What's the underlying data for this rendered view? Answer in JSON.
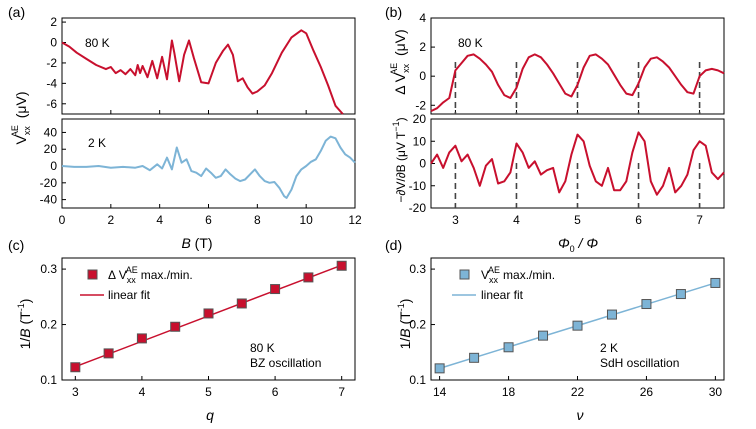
{
  "panel_labels": {
    "a": "(a)",
    "b": "(b)",
    "c": "(c)",
    "d": "(d)"
  },
  "colors": {
    "red": "#c8102e",
    "blue": "#7db4d6",
    "marker_edge": "#555555",
    "dash": "#444444"
  },
  "chart_data": [
    {
      "id": "a_top",
      "type": "line",
      "annotation": "80 K",
      "xlim": [
        0,
        12
      ],
      "ylim": [
        -7,
        2.4
      ],
      "yticks": [
        2,
        0,
        -2,
        -4,
        -6
      ],
      "series": [
        {
          "color": "#c8102e",
          "x": [
            0,
            0.3,
            0.6,
            1,
            1.4,
            1.8,
            2,
            2.2,
            2.4,
            2.6,
            2.8,
            3,
            3.1,
            3.2,
            3.3,
            3.5,
            3.7,
            3.9,
            4.1,
            4.3,
            4.5,
            4.6,
            4.8,
            5,
            5.2,
            5.4,
            5.7,
            6,
            6.3,
            6.6,
            6.8,
            7,
            7.2,
            7.4,
            7.6,
            7.8,
            8,
            8.3,
            8.6,
            9,
            9.4,
            9.8,
            10,
            10.3,
            10.6,
            10.9,
            11.2,
            11.5
          ],
          "y": [
            0,
            -0.4,
            -1,
            -1.6,
            -2.2,
            -2.6,
            -2.4,
            -3,
            -2.7,
            -3.1,
            -2.6,
            -3.2,
            -2.2,
            -3,
            -2.3,
            -3.4,
            -1.8,
            -3.5,
            -1.4,
            -3.6,
            0.2,
            -1,
            -3.8,
            -1.2,
            0.2,
            -1.5,
            -3.9,
            -4,
            -2,
            -0.8,
            -0.2,
            -1.2,
            -3.8,
            -3.5,
            -4.4,
            -5,
            -4.8,
            -4.2,
            -3,
            -1,
            0.5,
            1.2,
            0.9,
            -0.8,
            -2.4,
            -4.2,
            -6.2,
            -7.2
          ]
        }
      ]
    },
    {
      "id": "a_bottom",
      "type": "line",
      "annotation": "2 K",
      "xlabel": "B (T)",
      "xlim": [
        0,
        12
      ],
      "ylim": [
        -50,
        56
      ],
      "xticks": [
        0,
        2,
        4,
        6,
        8,
        10,
        12
      ],
      "yticks": [
        40,
        20,
        0,
        -20,
        -40
      ],
      "series": [
        {
          "color": "#7db4d6",
          "x": [
            0,
            0.5,
            1,
            1.5,
            2,
            2.5,
            3,
            3.3,
            3.6,
            3.9,
            4.1,
            4.3,
            4.5,
            4.7,
            4.9,
            5.1,
            5.3,
            5.5,
            5.7,
            5.9,
            6.1,
            6.3,
            6.5,
            6.7,
            6.9,
            7.1,
            7.3,
            7.5,
            7.7,
            7.9,
            8.1,
            8.3,
            8.5,
            8.7,
            8.9,
            9.1,
            9.2,
            9.4,
            9.6,
            9.8,
            10,
            10.2,
            10.4,
            10.6,
            10.8,
            11,
            11.2,
            11.4,
            11.6,
            11.8,
            12
          ],
          "y": [
            0,
            -1,
            -1,
            0,
            -2,
            -1,
            -2,
            0,
            -5,
            2,
            -3,
            10,
            -4,
            22,
            4,
            8,
            -6,
            -8,
            -12,
            -3,
            -8,
            -14,
            -12,
            -4,
            -10,
            -15,
            -18,
            -16,
            -10,
            -4,
            -12,
            -18,
            -20,
            -19,
            -26,
            -36,
            -38,
            -28,
            -12,
            -4,
            0,
            5,
            8,
            18,
            30,
            35,
            33,
            22,
            14,
            10,
            4
          ]
        }
      ]
    },
    {
      "id": "b_top",
      "type": "line",
      "annotation": "80 K",
      "xlim": [
        2.6,
        7.4
      ],
      "ylim": [
        -2.6,
        4
      ],
      "yticks": [
        4,
        2,
        0,
        -2
      ],
      "dashed_x": [
        3,
        4,
        5,
        6,
        7
      ],
      "series": [
        {
          "color": "#c8102e",
          "x": [
            2.6,
            2.7,
            2.8,
            2.9,
            3.0,
            3.1,
            3.2,
            3.3,
            3.4,
            3.5,
            3.6,
            3.7,
            3.8,
            3.9,
            4.0,
            4.1,
            4.2,
            4.3,
            4.4,
            4.5,
            4.6,
            4.7,
            4.8,
            4.9,
            5.0,
            5.1,
            5.2,
            5.3,
            5.4,
            5.5,
            5.6,
            5.7,
            5.8,
            5.9,
            6.0,
            6.1,
            6.2,
            6.3,
            6.4,
            6.5,
            6.6,
            6.7,
            6.8,
            6.9,
            7.0,
            7.1,
            7.2,
            7.3,
            7.4
          ],
          "y": [
            -2.4,
            -2.2,
            -1.8,
            -1.5,
            0.4,
            0.9,
            1.4,
            1.5,
            1.2,
            0.8,
            0.3,
            -0.6,
            -1.3,
            -1.5,
            -0.8,
            0.5,
            1.3,
            1.5,
            1.3,
            0.8,
            0.2,
            -0.5,
            -1.2,
            -1.4,
            -0.6,
            0.6,
            1.4,
            1.5,
            1.2,
            0.8,
            0.1,
            -0.6,
            -1.2,
            -1.3,
            -0.5,
            0.6,
            1.2,
            1.3,
            1.0,
            0.6,
            0,
            -0.6,
            -1.1,
            -1.2,
            0,
            0.4,
            0.5,
            0.4,
            0.2
          ]
        }
      ]
    },
    {
      "id": "b_bottom",
      "type": "line",
      "xlim": [
        2.6,
        7.4
      ],
      "ylim": [
        -20,
        20
      ],
      "xlabel": "Φ0 / Φ",
      "xticks": [
        3,
        4,
        5,
        6,
        7
      ],
      "yticks": [
        20,
        10,
        0,
        -10,
        -20
      ],
      "dashed_x": [
        3,
        4,
        5,
        6,
        7
      ],
      "series": [
        {
          "color": "#c8102e",
          "x": [
            2.6,
            2.7,
            2.8,
            2.9,
            3.0,
            3.1,
            3.2,
            3.3,
            3.4,
            3.5,
            3.6,
            3.7,
            3.8,
            3.9,
            4.0,
            4.1,
            4.2,
            4.3,
            4.4,
            4.5,
            4.6,
            4.7,
            4.8,
            4.9,
            5.0,
            5.1,
            5.2,
            5.3,
            5.4,
            5.5,
            5.6,
            5.7,
            5.8,
            5.9,
            6.0,
            6.1,
            6.2,
            6.3,
            6.4,
            6.5,
            6.6,
            6.7,
            6.8,
            6.9,
            7.0,
            7.1,
            7.2,
            7.3,
            7.4
          ],
          "y": [
            0,
            4,
            -2,
            5,
            8,
            1,
            4,
            -2,
            -10,
            -1,
            2,
            -9,
            -8,
            -4,
            9,
            5,
            -2,
            1,
            -5,
            -3,
            -2,
            -13,
            -8,
            4,
            13,
            10,
            -1,
            -8,
            -10,
            -2,
            -12,
            -12,
            -8,
            5,
            14,
            10,
            -8,
            -14,
            -10,
            -2,
            -13,
            -10,
            -5,
            6,
            10,
            8,
            -4,
            -7,
            -4
          ]
        }
      ]
    },
    {
      "id": "c",
      "type": "scatter",
      "xlabel": "q",
      "ylabel": "1/B (T-1)",
      "xlim": [
        2.8,
        7.2
      ],
      "ylim": [
        0.1,
        0.32
      ],
      "xticks": [
        3,
        4,
        5,
        6,
        7
      ],
      "yticks": [
        0.1,
        0.2,
        0.3
      ],
      "annotation_lines": [
        "80 K",
        "BZ oscillation"
      ],
      "legend": [
        "max./min.",
        "linear fit"
      ],
      "series": [
        {
          "name": "max./min.",
          "color": "#c8102e",
          "x": [
            3,
            3.5,
            4,
            4.5,
            5,
            5.5,
            6,
            6.5,
            7
          ],
          "y": [
            0.123,
            0.148,
            0.175,
            0.196,
            0.22,
            0.238,
            0.264,
            0.285,
            0.306
          ]
        },
        {
          "name": "linear fit",
          "color": "#c8102e",
          "x": [
            3,
            7
          ],
          "y": [
            0.124,
            0.307
          ]
        }
      ]
    },
    {
      "id": "d",
      "type": "scatter",
      "xlabel": "ν",
      "ylabel": "1/B (T-1)",
      "xlim": [
        13.5,
        30.5
      ],
      "ylim": [
        0.1,
        0.32
      ],
      "xticks": [
        14,
        18,
        22,
        26,
        30
      ],
      "yticks": [
        0.1,
        0.2,
        0.3
      ],
      "annotation_lines": [
        "2 K",
        "SdH oscillation"
      ],
      "legend": [
        "max./min.",
        "linear fit"
      ],
      "series": [
        {
          "name": "max./min.",
          "color": "#7db4d6",
          "x": [
            14,
            16,
            18,
            20,
            22,
            24,
            26,
            28,
            30
          ],
          "y": [
            0.121,
            0.14,
            0.159,
            0.18,
            0.198,
            0.218,
            0.237,
            0.255,
            0.275
          ]
        },
        {
          "name": "linear fit",
          "color": "#7db4d6",
          "x": [
            14,
            30
          ],
          "y": [
            0.121,
            0.275
          ]
        }
      ]
    }
  ],
  "ylabels": {
    "a": "V xx AE (μV)",
    "b_top": "Δ V xx AE (μV)",
    "b_bottom": "−∂V/∂B (μV T−1)"
  }
}
